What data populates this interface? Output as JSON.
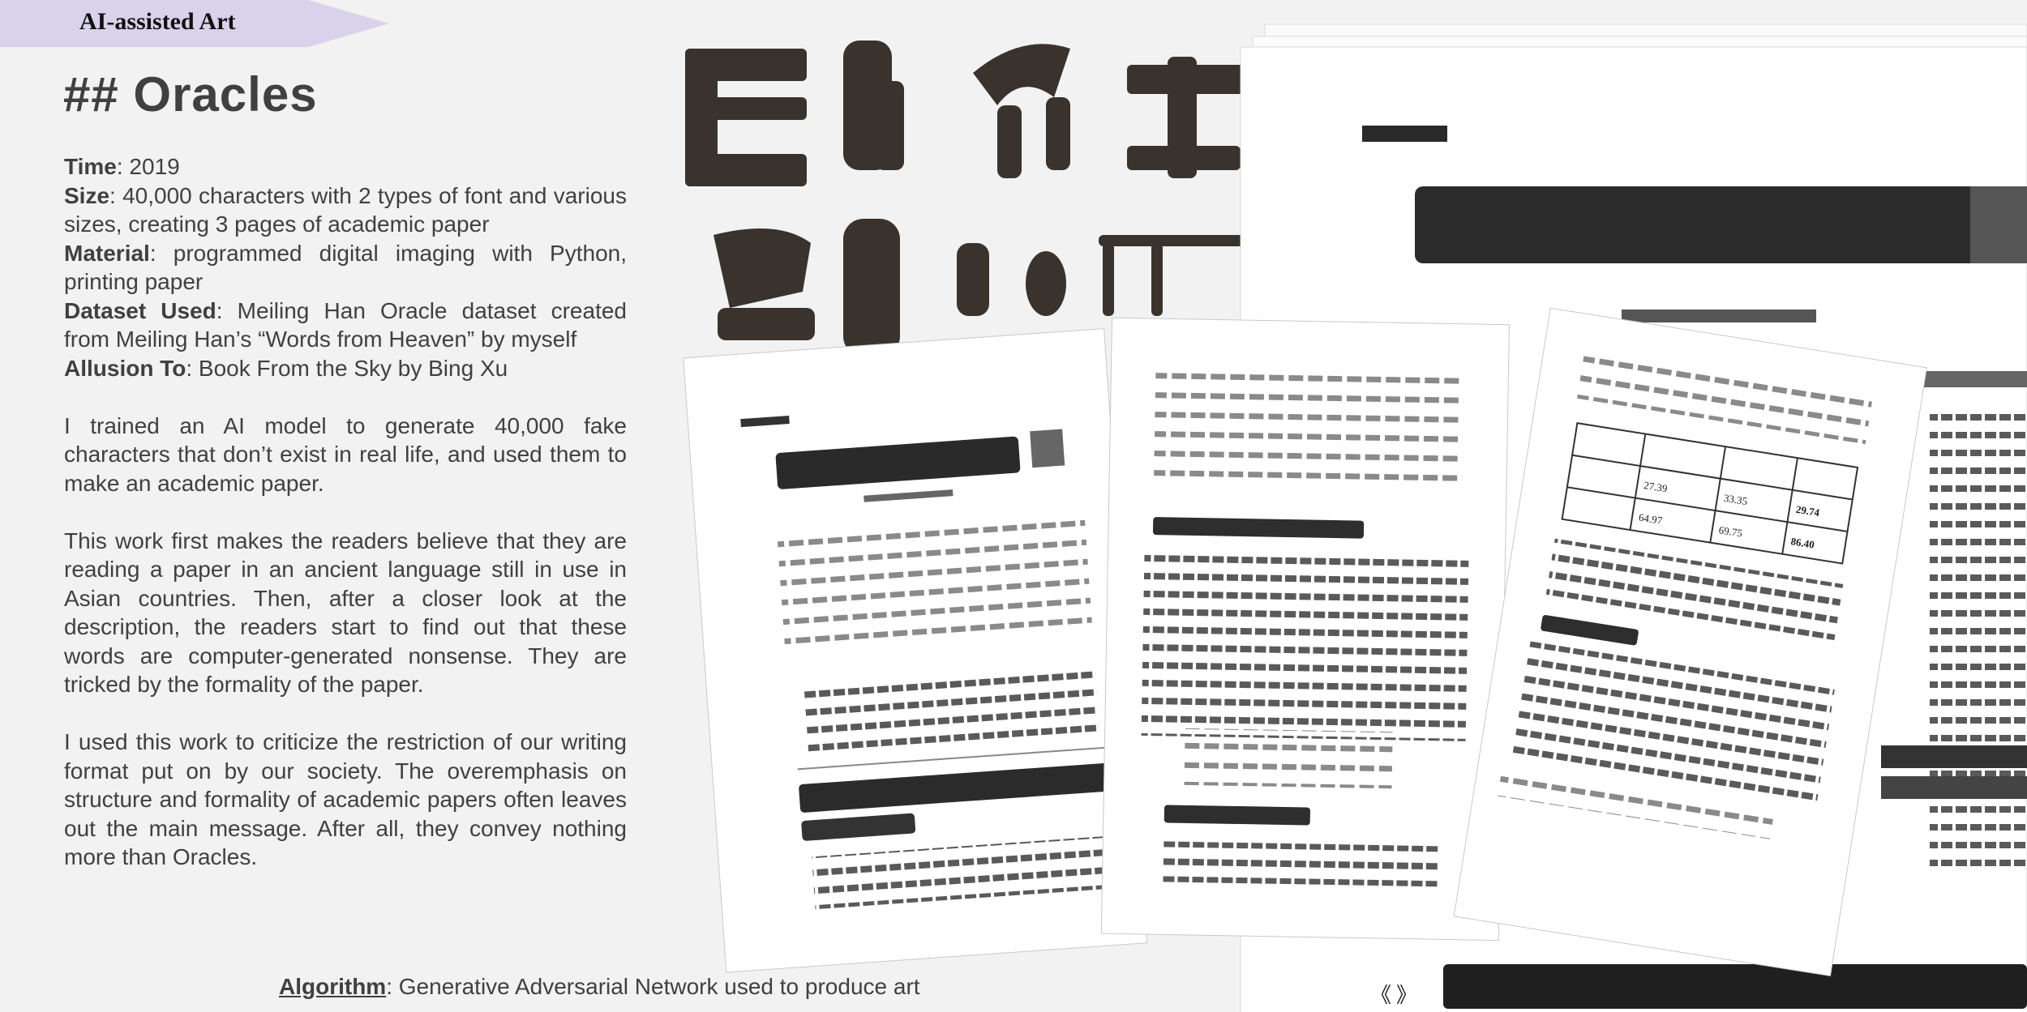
{
  "banner": {
    "label": "AI-assisted Art"
  },
  "heading": "## Oracles",
  "details": {
    "time_label": "Time",
    "time_value": ": 2019",
    "size_label": "Size",
    "size_value": ": 40,000 characters with 2 types of font and various sizes, creating 3 pages of academic paper",
    "material_label": "Material",
    "material_value": ": programmed digital imaging with Python, printing paper",
    "dataset_label": "Dataset Used",
    "dataset_value": ": Meiling Han Oracle dataset created from Meiling Han’s “Words from Heaven” by myself",
    "allusion_label": "Allusion To",
    "allusion_value": ": Book From the Sky by Bing Xu"
  },
  "paragraphs": [
    "I trained an AI model to generate 40,000 fake characters that don’t exist in real life, and used them to make an academic paper.",
    "This work first makes the readers believe that they are reading a paper in an ancient language still in use in Asian countries. Then, after a closer look at the description, the readers start to find out that these words are computer-generated nonsense. They are tricked by the formality of the paper.",
    "I used this work to criticize the restriction of our writing format put on by our society. The overemphasis on structure and formality of academic papers often leaves out the main message. After all, they convey nothing more than Oracles."
  ],
  "footer": {
    "label": "Algorithm",
    "text": ": Generative Adversarial Network used to produce art"
  },
  "table": {
    "cells": [
      "27.39",
      "33.35",
      "64.97",
      "69.75",
      "29.74",
      "86.40"
    ]
  },
  "artwork_marks": [
    "《",
    "》"
  ]
}
